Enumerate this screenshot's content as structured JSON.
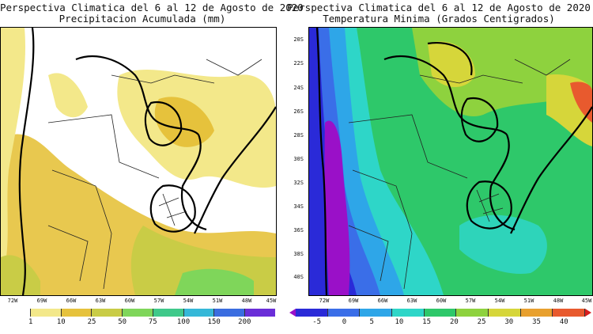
{
  "left": {
    "title_line1": "Perspectiva Climatica del 6 al 12 de Agosto de 2020",
    "title_line2": "Precipitacion Acumulada (mm)",
    "lon_labels": [
      "72W",
      "69W",
      "66W",
      "63W",
      "60W",
      "57W",
      "54W",
      "51W",
      "48W",
      "45W"
    ],
    "legend_labels": [
      "1",
      "10",
      "25",
      "50",
      "75",
      "100",
      "150",
      "200"
    ],
    "legend_colors": [
      "#ffffff",
      "#f3e88a",
      "#e6c23c",
      "#c9cc46",
      "#7fd65a",
      "#3fc98a",
      "#35b8d8",
      "#3a6de0",
      "#6a2ed8"
    ]
  },
  "right": {
    "title_line1": "Perspectiva Climatica del 6 al 12 de Agosto de 2020",
    "title_line2": "Temperatura Minima (Grados Centigrados)",
    "lon_labels": [
      "72W",
      "69W",
      "66W",
      "63W",
      "60W",
      "57W",
      "54W",
      "51W",
      "48W",
      "45W"
    ],
    "lat_labels": [
      "20S",
      "22S",
      "24S",
      "26S",
      "28S",
      "30S",
      "32S",
      "34S",
      "36S",
      "38S",
      "40S"
    ],
    "legend_labels": [
      "-5",
      "0",
      "5",
      "10",
      "15",
      "20",
      "25",
      "30",
      "35",
      "40"
    ],
    "legend_colors": [
      "#9a10c8",
      "#2a2ad8",
      "#3a6ee8",
      "#2ea6e8",
      "#2ed6c8",
      "#2ec86a",
      "#8ed23e",
      "#d6d63a",
      "#e8a02e",
      "#e85a2e",
      "#d81e1e"
    ]
  }
}
